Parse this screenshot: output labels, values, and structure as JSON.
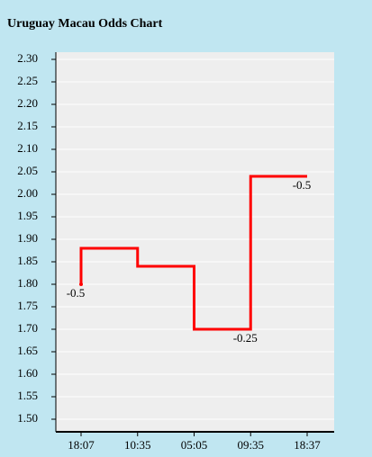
{
  "chart_data": {
    "type": "step-line",
    "title": "Uruguay Macau Odds Chart",
    "categories": [
      "18:07",
      "10:35",
      "05:05",
      "09:35",
      "18:37"
    ],
    "values": [
      1.8,
      1.88,
      1.84,
      1.7,
      2.04
    ],
    "point_labels": [
      "-0.5",
      null,
      null,
      "-0.25",
      "-0.5"
    ],
    "color": "#ff0000",
    "ylim": [
      1.472,
      2.316
    ],
    "yticks": [
      {
        "value": 1.5,
        "label": "1.50"
      },
      {
        "value": 1.55,
        "label": "1.55"
      },
      {
        "value": 1.6,
        "label": "1.60"
      },
      {
        "value": 1.65,
        "label": "1.65"
      },
      {
        "value": 1.7,
        "label": "1.70"
      },
      {
        "value": 1.75,
        "label": "1.75"
      },
      {
        "value": 1.8,
        "label": "1.80"
      },
      {
        "value": 1.85,
        "label": "1.85"
      },
      {
        "value": 1.9,
        "label": "1.90"
      },
      {
        "value": 1.95,
        "label": "1.95"
      },
      {
        "value": 2.0,
        "label": "2.00"
      },
      {
        "value": 2.05,
        "label": "2.05"
      },
      {
        "value": 2.1,
        "label": "2.10"
      },
      {
        "value": 2.15,
        "label": "2.15"
      },
      {
        "value": 2.2,
        "label": "2.20"
      },
      {
        "value": 2.25,
        "label": "2.25"
      },
      {
        "value": 2.3,
        "label": "2.30"
      }
    ],
    "grid": true
  }
}
